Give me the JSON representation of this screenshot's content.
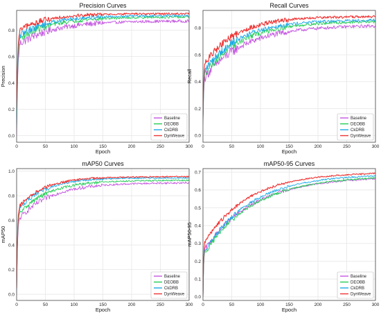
{
  "figure": {
    "colors": {
      "Baseline": "#c455e0",
      "DEOBB": "#22cc55",
      "CkDRB": "#1aa8e8",
      "DynWeave": "#ee3333",
      "grid": "#e6e6e6",
      "frame": "#444444"
    }
  },
  "chart_data": [
    {
      "type": "line",
      "title": "Precision Curves",
      "xlabel": "Epoch",
      "ylabel": "Precision",
      "xlim": [
        0,
        300
      ],
      "ylim": [
        -0.05,
        0.95
      ],
      "xticks": [
        "0",
        "50",
        "100",
        "150",
        "200",
        "250",
        "300"
      ],
      "yticks": [
        "0.0",
        "0.2",
        "0.4",
        "0.6",
        "0.8"
      ],
      "grid": true,
      "legend": "bottom-right",
      "series": [
        {
          "name": "Baseline",
          "start": 0.0,
          "final": 0.87,
          "knee": 0.7,
          "fast": 0.3,
          "slow": 60,
          "noise": 0.018
        },
        {
          "name": "DEOBB",
          "start": 0.05,
          "final": 0.9,
          "knee": 0.74,
          "fast": 0.3,
          "slow": 55,
          "noise": 0.015
        },
        {
          "name": "CkDRB",
          "start": 0.1,
          "final": 0.91,
          "knee": 0.76,
          "fast": 0.3,
          "slow": 50,
          "noise": 0.014
        },
        {
          "name": "DynWeave",
          "start": 0.2,
          "final": 0.925,
          "knee": 0.8,
          "fast": 0.3,
          "slow": 45,
          "noise": 0.012
        }
      ]
    },
    {
      "type": "line",
      "title": "Recall Curves",
      "xlabel": "Epoch",
      "ylabel": "Recall",
      "xlim": [
        0,
        300
      ],
      "ylim": [
        -0.05,
        0.93
      ],
      "xticks": [
        "0",
        "50",
        "100",
        "150",
        "200",
        "250",
        "300"
      ],
      "yticks": [
        "0.0",
        "0.2",
        "0.4",
        "0.6",
        "0.8"
      ],
      "grid": true,
      "legend": "bottom-right",
      "series": [
        {
          "name": "Baseline",
          "start": 0.08,
          "final": 0.82,
          "knee": 0.45,
          "fast": 0.5,
          "slow": 70,
          "noise": 0.02
        },
        {
          "name": "DEOBB",
          "start": 0.1,
          "final": 0.85,
          "knee": 0.48,
          "fast": 0.5,
          "slow": 65,
          "noise": 0.018
        },
        {
          "name": "CkDRB",
          "start": 0.12,
          "final": 0.86,
          "knee": 0.5,
          "fast": 0.5,
          "slow": 60,
          "noise": 0.017
        },
        {
          "name": "DynWeave",
          "start": 0.15,
          "final": 0.885,
          "knee": 0.55,
          "fast": 0.5,
          "slow": 55,
          "noise": 0.015
        }
      ]
    },
    {
      "type": "line",
      "title": "mAP50 Curves",
      "xlabel": "Epoch",
      "ylabel": "mAP50",
      "xlim": [
        0,
        300
      ],
      "ylim": [
        -0.05,
        1.02
      ],
      "xticks": [
        "0",
        "50",
        "100",
        "150",
        "200",
        "250",
        "300"
      ],
      "yticks": [
        "0.0",
        "0.2",
        "0.4",
        "0.6",
        "0.8",
        "1.0"
      ],
      "grid": true,
      "legend": "bottom-right",
      "series": [
        {
          "name": "Baseline",
          "start": 0.0,
          "final": 0.905,
          "knee": 0.62,
          "fast": 0.4,
          "slow": 55,
          "noise": 0.012
        },
        {
          "name": "DEOBB",
          "start": 0.02,
          "final": 0.925,
          "knee": 0.66,
          "fast": 0.4,
          "slow": 50,
          "noise": 0.01
        },
        {
          "name": "CkDRB",
          "start": 0.03,
          "final": 0.945,
          "knee": 0.7,
          "fast": 0.4,
          "slow": 45,
          "noise": 0.009
        },
        {
          "name": "DynWeave",
          "start": 0.05,
          "final": 0.955,
          "knee": 0.72,
          "fast": 0.4,
          "slow": 45,
          "noise": 0.008
        }
      ]
    },
    {
      "type": "line",
      "title": "mAP50-95 Curves",
      "xlabel": "Epoch",
      "ylabel": "mAP50-95",
      "xlim": [
        0,
        300
      ],
      "ylim": [
        -0.02,
        0.72
      ],
      "xticks": [
        "0",
        "50",
        "100",
        "150",
        "200",
        "250",
        "300"
      ],
      "yticks": [
        "0.0",
        "0.1",
        "0.2",
        "0.3",
        "0.4",
        "0.5",
        "0.6",
        "0.7"
      ],
      "grid": true,
      "legend": "bottom-right",
      "series": [
        {
          "name": "Baseline",
          "start": 0.0,
          "final": 0.675,
          "knee": 0.28,
          "fast": 0.6,
          "slow": 85,
          "noise": 0.008
        },
        {
          "name": "DEOBB",
          "start": 0.0,
          "final": 0.68,
          "knee": 0.26,
          "fast": 0.6,
          "slow": 85,
          "noise": 0.008
        },
        {
          "name": "CkDRB",
          "start": 0.0,
          "final": 0.69,
          "knee": 0.27,
          "fast": 0.6,
          "slow": 80,
          "noise": 0.007
        },
        {
          "name": "DynWeave",
          "start": 0.0,
          "final": 0.7,
          "knee": 0.32,
          "fast": 0.6,
          "slow": 75,
          "noise": 0.006
        }
      ]
    }
  ]
}
